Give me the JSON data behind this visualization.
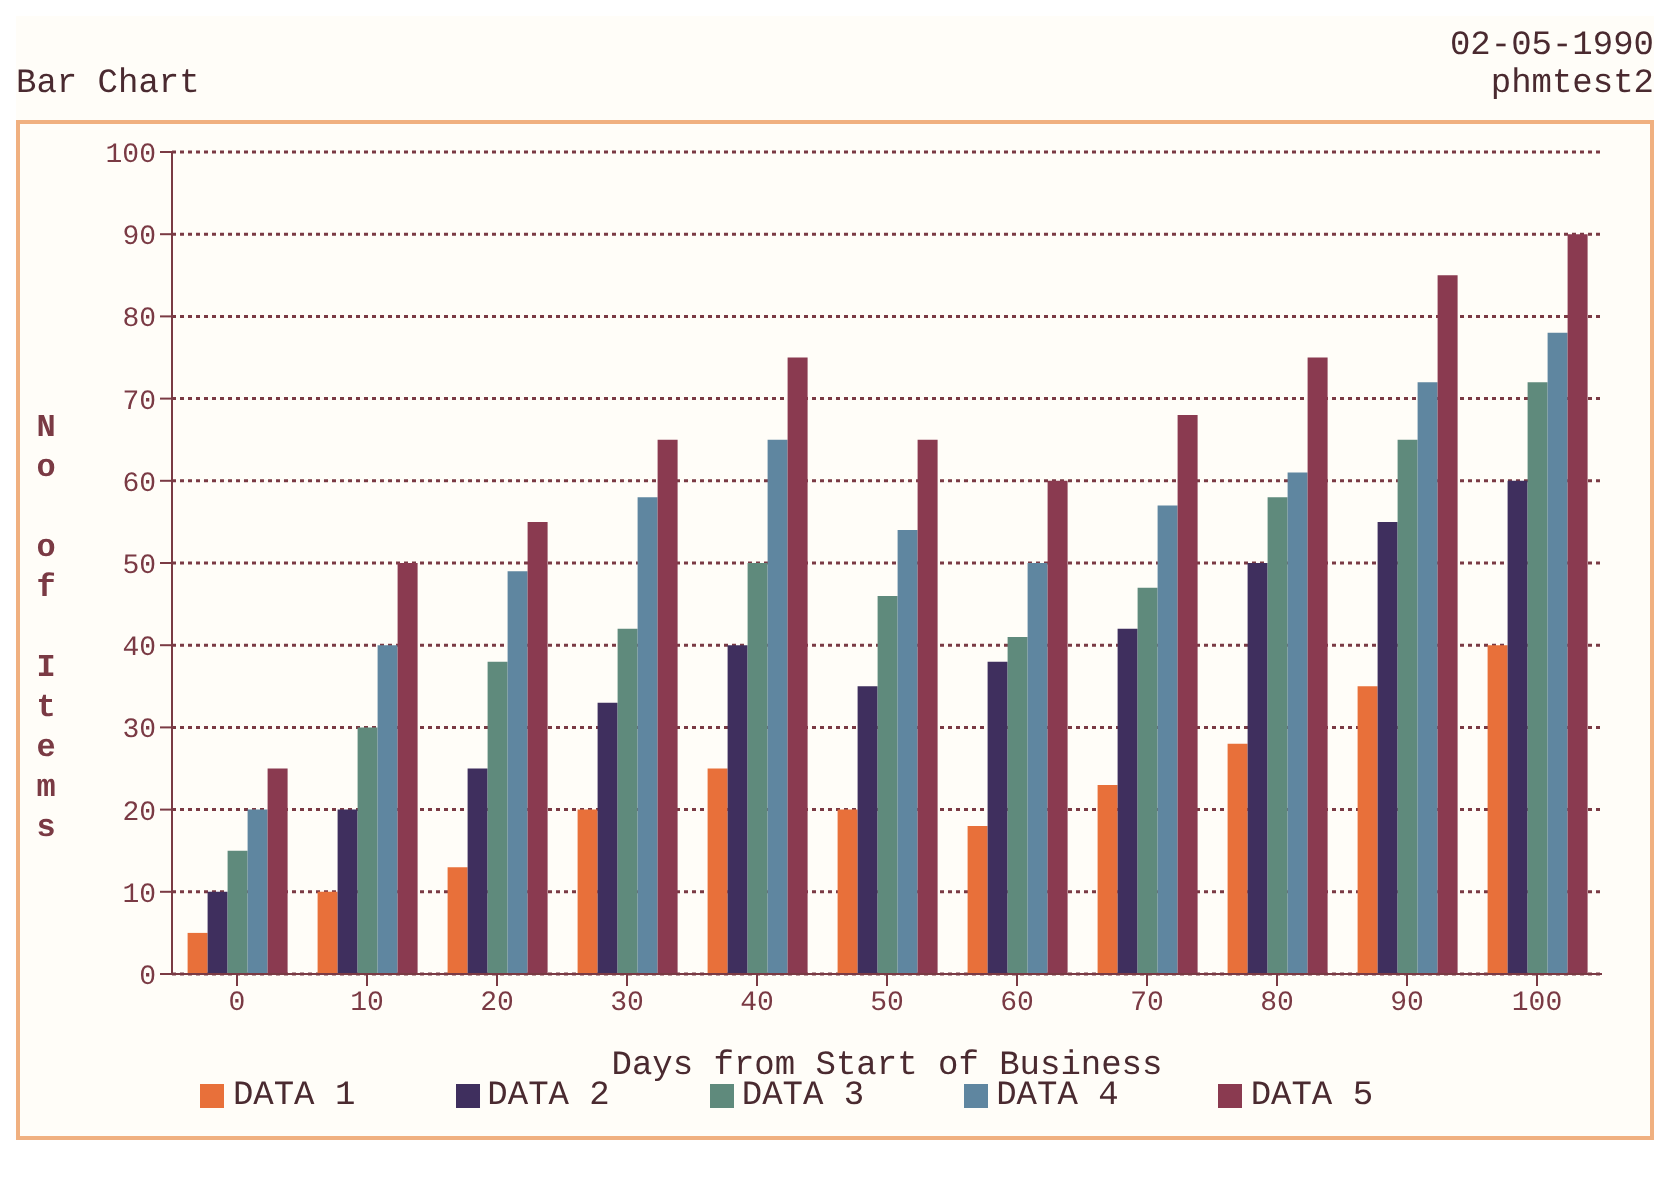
{
  "chart_data": {
    "type": "bar",
    "annotations": [
      "Bar Chart",
      "02-05-1990",
      "phmtest2"
    ],
    "xlabel": "Days from Start of Business",
    "ylabel": "No of Items",
    "categories": [
      "0",
      "10",
      "20",
      "30",
      "40",
      "50",
      "60",
      "70",
      "80",
      "90",
      "100"
    ],
    "series": [
      {
        "name": "DATA 1",
        "color": "#e8703a",
        "values": [
          5,
          10,
          13,
          20,
          25,
          20,
          18,
          23,
          28,
          35,
          40
        ]
      },
      {
        "name": "DATA 2",
        "color": "#3f2f5e",
        "values": [
          10,
          20,
          25,
          33,
          40,
          35,
          38,
          42,
          50,
          55,
          60
        ]
      },
      {
        "name": "DATA 3",
        "color": "#5f8a7c",
        "values": [
          15,
          30,
          38,
          42,
          50,
          46,
          41,
          47,
          58,
          65,
          72
        ]
      },
      {
        "name": "DATA 4",
        "color": "#5f86a0",
        "values": [
          20,
          40,
          49,
          58,
          65,
          54,
          50,
          57,
          61,
          72,
          78
        ]
      },
      {
        "name": "DATA 5",
        "color": "#8a3a50",
        "values": [
          25,
          50,
          55,
          65,
          75,
          65,
          60,
          68,
          75,
          85,
          90
        ]
      }
    ],
    "ylim": [
      0,
      100
    ],
    "yticks": [
      0,
      10,
      20,
      30,
      40,
      50,
      60,
      70,
      80,
      90,
      100
    ],
    "grid": "y",
    "legend": "bottom"
  }
}
